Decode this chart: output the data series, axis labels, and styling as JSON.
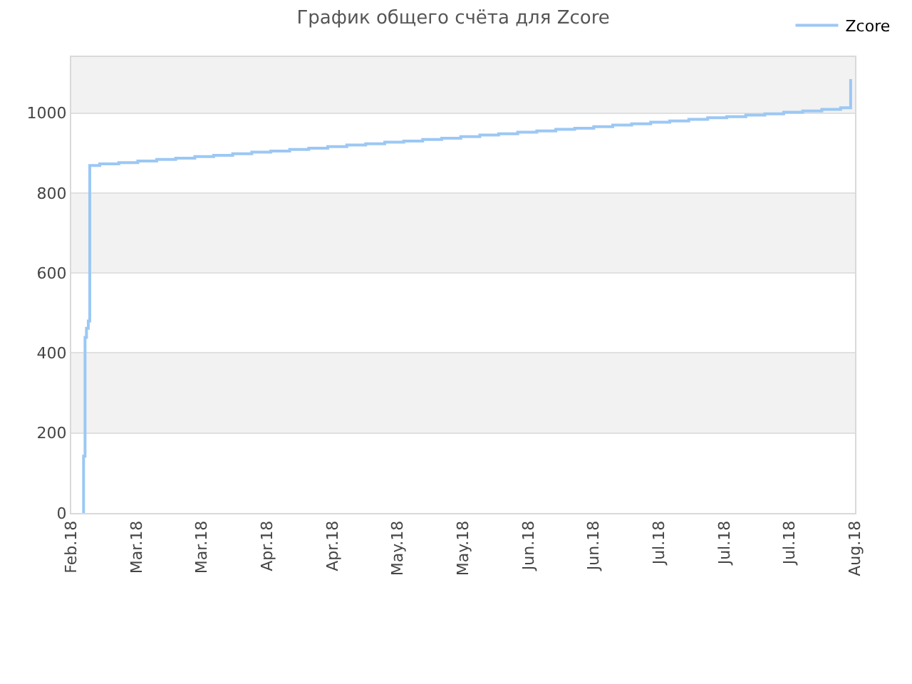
{
  "chart_data": {
    "type": "step",
    "title": "График общего счёта для Zcore",
    "series": [
      {
        "name": "Zcore",
        "color": "#9cc8f4",
        "x": [
          "2018-02-18T20:00",
          "2018-02-18T20:00",
          "2018-02-19T04:00",
          "2018-02-19T12:00",
          "2018-02-19T22:00",
          "2018-02-20T06:00",
          "2018-02-22T13:00",
          "2018-02-26T22:00",
          "2018-03-03T07:00",
          "2018-03-07T15:00",
          "2018-03-12T00:00",
          "2018-03-16T09:00",
          "2018-03-20T17:00",
          "2018-03-25T02:00",
          "2018-03-29T11:00",
          "2018-04-02T20:00",
          "2018-04-07T04:00",
          "2018-04-11T13:00",
          "2018-04-15T22:00",
          "2018-04-20T07:00",
          "2018-04-24T15:00",
          "2018-04-29T00:00",
          "2018-05-03T09:00",
          "2018-05-07T17:00",
          "2018-05-12T02:00",
          "2018-05-16T11:00",
          "2018-05-20T20:00",
          "2018-05-25T04:00",
          "2018-05-29T13:00",
          "2018-06-02T22:00",
          "2018-06-07T07:00",
          "2018-06-11T15:00",
          "2018-06-16T00:00",
          "2018-06-20T09:00",
          "2018-06-24T17:00",
          "2018-06-29T02:00",
          "2018-07-03T11:00",
          "2018-07-07T20:00",
          "2018-07-12T04:00",
          "2018-07-16T13:00",
          "2018-07-20T22:00",
          "2018-07-25T07:00",
          "2018-07-29T15:00",
          "2018-08-03T00:00",
          "2018-08-07T09:00",
          "2018-08-11T17:00",
          "2018-08-14T00:00"
        ],
        "values": [
          0,
          142,
          439,
          462,
          480,
          869,
          873,
          876,
          880,
          884,
          887,
          891,
          894,
          898,
          902,
          905,
          909,
          912,
          916,
          920,
          923,
          927,
          930,
          934,
          937,
          941,
          945,
          948,
          952,
          955,
          959,
          962,
          966,
          970,
          973,
          977,
          980,
          984,
          988,
          991,
          995,
          998,
          1002,
          1005,
          1009,
          1013,
          1085
        ]
      }
    ],
    "xlim": [
      "2018-02-16",
      "2018-08-15"
    ],
    "xticks": [
      {
        "value": "2018-02-16",
        "label": "Feb.18"
      },
      {
        "value": "2018-03-03",
        "label": "Mar.18"
      },
      {
        "value": "2018-03-18",
        "label": "Mar.18"
      },
      {
        "value": "2018-04-02",
        "label": "Apr.18"
      },
      {
        "value": "2018-04-17",
        "label": "Apr.18"
      },
      {
        "value": "2018-05-02",
        "label": "May.18"
      },
      {
        "value": "2018-05-17",
        "label": "May.18"
      },
      {
        "value": "2018-06-01",
        "label": "Jun.18"
      },
      {
        "value": "2018-06-16",
        "label": "Jun.18"
      },
      {
        "value": "2018-07-01",
        "label": "Jul.18"
      },
      {
        "value": "2018-07-16",
        "label": "Jul.18"
      },
      {
        "value": "2018-07-31",
        "label": "Jul.18"
      },
      {
        "value": "2018-08-15",
        "label": "Aug.18"
      }
    ],
    "ylim": [
      0,
      1140
    ],
    "yticks": [
      0,
      200,
      400,
      600,
      800,
      1000
    ],
    "grid": "y",
    "legend": "top right",
    "marker": "none",
    "line_style": "solid"
  }
}
